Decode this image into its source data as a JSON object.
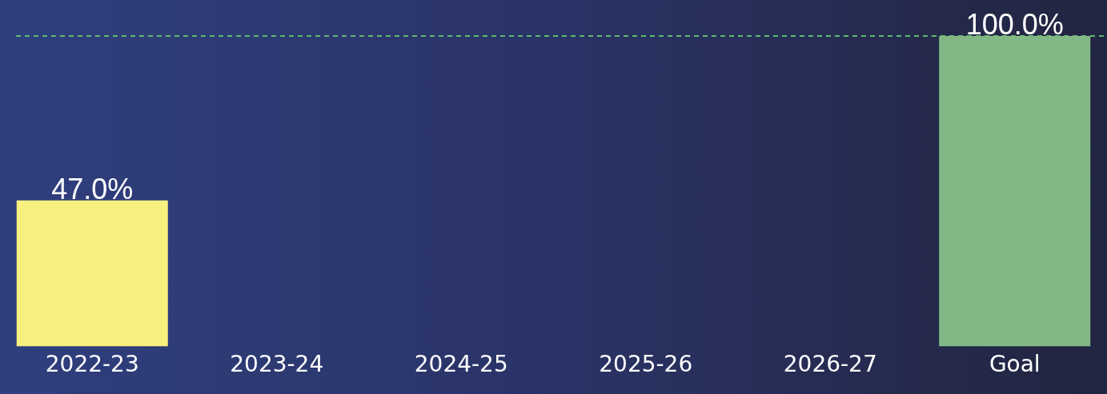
{
  "chart_data": {
    "type": "bar",
    "categories": [
      "2022-23",
      "2023-24",
      "2024-25",
      "2025-26",
      "2026-27",
      "Goal"
    ],
    "values": [
      47,
      null,
      null,
      null,
      null,
      100
    ],
    "colors": [
      "#f8f07e",
      "#f8f07e",
      "#f8f07e",
      "#f8f07e",
      "#f8f07e",
      "#82b886"
    ],
    "value_labels": [
      "47.0%",
      null,
      null,
      null,
      null,
      "100.0%"
    ],
    "ylim": [
      0,
      100
    ],
    "tick_labels": "x",
    "grid": false,
    "legend": false,
    "ref_lines": [
      {
        "axis": "y",
        "value": 100,
        "color": "#5dbb6d",
        "line_style": "dashed"
      }
    ]
  }
}
